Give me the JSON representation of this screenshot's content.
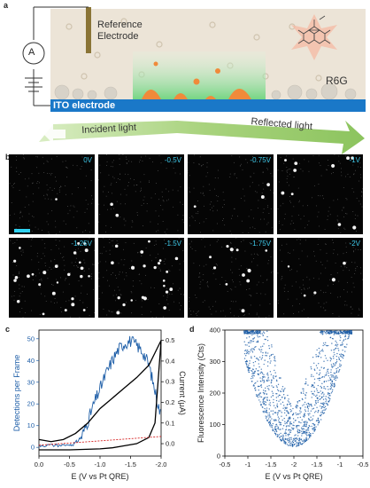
{
  "panel_a": {
    "letter": "a",
    "ammeter_symbol": "A",
    "reference_electrode_label": "Reference\nElectrode",
    "dye_label": "R6G",
    "ito_label": "ITO electrode",
    "incident_label": "Incident light",
    "reflected_label": "Reflected light",
    "colors": {
      "solution": "#ece4d7",
      "ito": "#1a78c8",
      "glow": "#7edc8c",
      "particles": "#f08a3a",
      "arrow": "#a6cf7c"
    }
  },
  "panel_b": {
    "letter": "b",
    "frames": [
      {
        "voltage": "0V",
        "spot_count": 1
      },
      {
        "voltage": "-0.5V",
        "spot_count": 2
      },
      {
        "voltage": "-0.75V",
        "spot_count": 3
      },
      {
        "voltage": "-1V",
        "spot_count": 10
      },
      {
        "voltage": "-1.25V",
        "spot_count": 26
      },
      {
        "voltage": "-1.5V",
        "spot_count": 22
      },
      {
        "voltage": "-1.75V",
        "spot_count": 11
      },
      {
        "voltage": "-2V",
        "spot_count": 5
      }
    ],
    "scale_bar_color": "#2fd1f0"
  },
  "panel_c": {
    "letter": "c",
    "chart_data": {
      "type": "line",
      "xlabel": "E (V vs Pt QRE)",
      "ylabel_left": "Detections per Frame",
      "ylabel_right": "Current (μA)",
      "x_ticks": [
        "0.0",
        "-0.5",
        "-1.0",
        "-1.5",
        "-2.0"
      ],
      "y_left_ticks": [
        "0",
        "10",
        "20",
        "30",
        "40",
        "50"
      ],
      "y_right_ticks": [
        "0.0",
        "0.1",
        "0.2",
        "0.3",
        "0.4",
        "0.5"
      ],
      "x_range": [
        0.0,
        -2.0
      ],
      "y_left_range": [
        -4,
        54
      ],
      "y_right_range": [
        -0.06,
        0.55
      ],
      "series": [
        {
          "color": "#1f5fa8",
          "axis": "left",
          "x": [
            -0.5,
            -0.6,
            -0.7,
            -0.8,
            -0.9,
            -1.0,
            -1.1,
            -1.2,
            -1.3,
            -1.4,
            -1.5,
            -1.6,
            -1.7,
            -1.8,
            -1.9,
            -2.0
          ],
          "y": [
            1,
            2,
            5,
            12,
            20,
            27,
            34,
            40,
            45,
            48,
            49,
            47,
            44,
            38,
            26,
            14
          ]
        },
        {
          "color": "#000000",
          "axis": "right",
          "x": [
            0.0,
            -0.5,
            -1.0,
            -1.2,
            -1.4,
            -1.6,
            -1.8,
            -1.9,
            -2.0,
            -1.9,
            -1.8,
            -1.6,
            -1.4,
            -1.2,
            -1.0,
            -0.8,
            -0.6,
            -0.4,
            -0.2,
            0.0
          ],
          "y": [
            -0.03,
            -0.03,
            -0.025,
            -0.02,
            -0.01,
            0.0,
            0.03,
            0.1,
            0.5,
            0.44,
            0.38,
            0.32,
            0.27,
            0.22,
            0.17,
            0.1,
            0.05,
            0.02,
            0.01,
            0.02
          ]
        },
        {
          "color": "#d62020",
          "axis": "left",
          "dashed": true,
          "x": [
            0.0,
            -2.0
          ],
          "y": [
            1,
            5
          ]
        }
      ]
    }
  },
  "panel_d": {
    "letter": "d",
    "chart_data": {
      "type": "scatter",
      "xlabel": "E (V vs Pt QRE)",
      "ylabel": "Fluorescence Intensity (Cts)",
      "x_ticks": [
        "-0.5",
        "-1",
        "-1.5",
        "-2",
        "-1.5",
        "-1",
        "-0.5"
      ],
      "y_ticks": [
        "0",
        "100",
        "200",
        "300",
        "400"
      ],
      "y_range": [
        0,
        400
      ],
      "point_color": "#1f5fa8",
      "shape": "V-shaped scatter, minimum near -2 V"
    }
  }
}
